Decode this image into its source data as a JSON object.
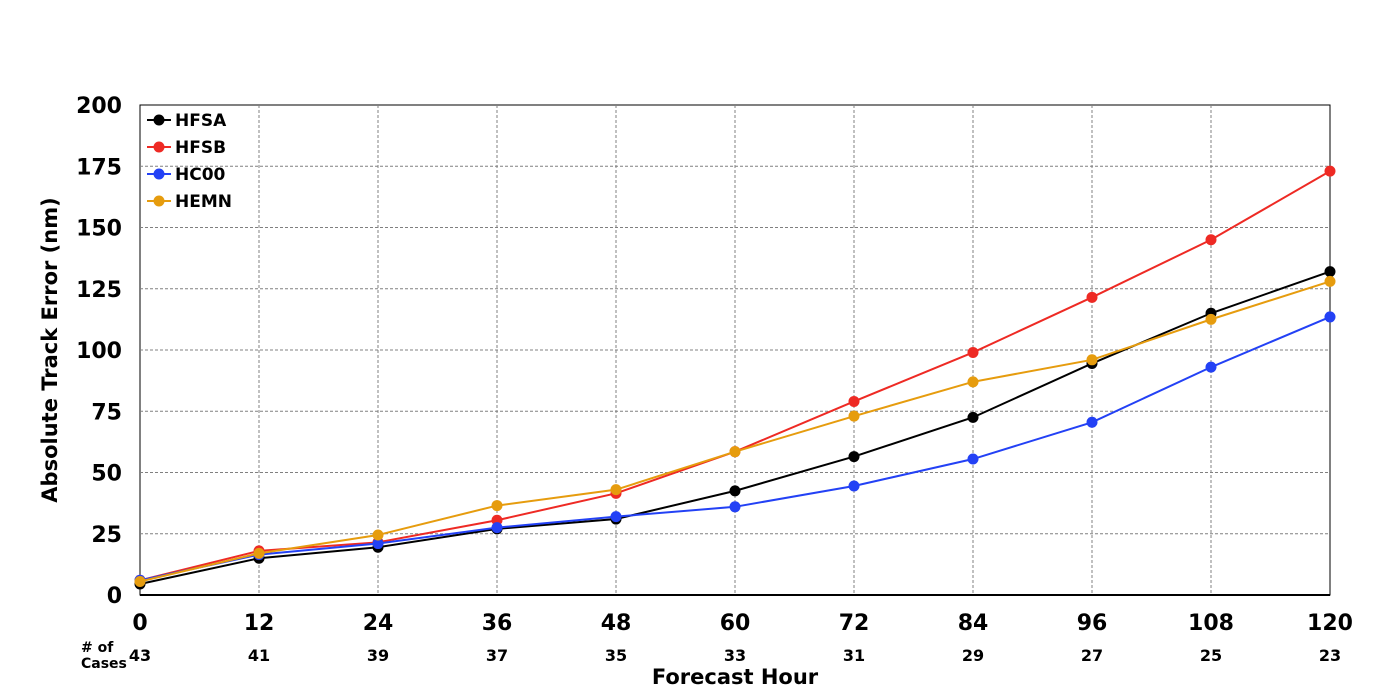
{
  "chart_data": {
    "type": "line",
    "title": "",
    "xlabel": "Forecast Hour",
    "ylabel": "Absolute Track Error (nm)",
    "x": [
      0,
      12,
      24,
      36,
      48,
      60,
      72,
      84,
      96,
      108,
      120
    ],
    "xlim": [
      0,
      120
    ],
    "ylim": [
      0,
      200
    ],
    "yticks": [
      0,
      25,
      50,
      75,
      100,
      125,
      150,
      175,
      200
    ],
    "grid": true,
    "legend_position": "top-left",
    "cases_label": "# of Cases",
    "cases": [
      43,
      41,
      39,
      37,
      35,
      33,
      31,
      29,
      27,
      25,
      23
    ],
    "series": [
      {
        "name": "HFSA",
        "color": "#000000",
        "values": [
          4.5,
          15,
          19.5,
          27,
          31,
          42.5,
          56.5,
          72.5,
          94.5,
          115,
          132
        ]
      },
      {
        "name": "HFSB",
        "color": "#ee2a24",
        "values": [
          6,
          18,
          21.5,
          30.5,
          41.5,
          58.5,
          79,
          99,
          121.5,
          145,
          173
        ]
      },
      {
        "name": "HC00",
        "color": "#2341f5",
        "values": [
          6,
          16.5,
          21,
          27.5,
          32,
          36,
          44.5,
          55.5,
          70.5,
          93,
          113.5
        ]
      },
      {
        "name": "HEMN",
        "color": "#e69c0e",
        "values": [
          5.5,
          17,
          24.5,
          36.5,
          43,
          58.5,
          73,
          87,
          96,
          112.5,
          128
        ]
      }
    ]
  }
}
